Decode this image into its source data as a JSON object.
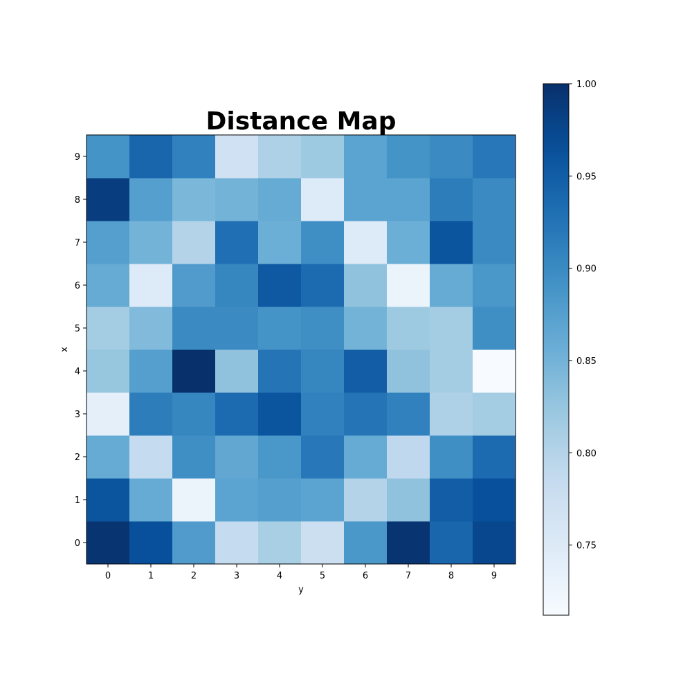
{
  "chart_data": {
    "type": "heatmap",
    "title": "Distance Map",
    "xlabel": "y",
    "ylabel": "x",
    "x_ticks": [
      "0",
      "1",
      "2",
      "3",
      "4",
      "5",
      "6",
      "7",
      "8",
      "9"
    ],
    "y_ticks": [
      "0",
      "1",
      "2",
      "3",
      "4",
      "5",
      "6",
      "7",
      "8",
      "9"
    ],
    "colormap": "Blues",
    "colorbar": {
      "min": 0.712,
      "max": 1.0,
      "ticks": [
        "0.75",
        "0.80",
        "0.85",
        "0.90",
        "0.95",
        "1.00"
      ],
      "tick_values": [
        0.75,
        0.8,
        0.85,
        0.9,
        0.95,
        1.0
      ]
    },
    "values_by_row_index": [
      [
        0.995,
        0.965,
        0.88,
        0.785,
        0.81,
        0.775,
        0.885,
        0.995,
        0.94,
        0.975
      ],
      [
        0.96,
        0.86,
        0.73,
        0.87,
        0.875,
        0.87,
        0.8,
        0.83,
        0.95,
        0.965
      ],
      [
        0.86,
        0.785,
        0.895,
        0.865,
        0.885,
        0.92,
        0.86,
        0.79,
        0.895,
        0.935
      ],
      [
        0.74,
        0.915,
        0.905,
        0.935,
        0.96,
        0.91,
        0.925,
        0.91,
        0.805,
        0.815
      ],
      [
        0.825,
        0.875,
        1.0,
        0.83,
        0.925,
        0.905,
        0.95,
        0.83,
        0.815,
        0.712
      ],
      [
        0.815,
        0.84,
        0.9,
        0.9,
        0.89,
        0.895,
        0.85,
        0.82,
        0.815,
        0.895
      ],
      [
        0.86,
        0.75,
        0.88,
        0.905,
        0.955,
        0.935,
        0.83,
        0.73,
        0.86,
        0.885
      ],
      [
        0.875,
        0.85,
        0.8,
        0.93,
        0.855,
        0.895,
        0.75,
        0.855,
        0.96,
        0.9
      ],
      [
        0.985,
        0.875,
        0.845,
        0.85,
        0.86,
        0.75,
        0.87,
        0.87,
        0.915,
        0.9
      ],
      [
        0.89,
        0.94,
        0.91,
        0.77,
        0.805,
        0.82,
        0.87,
        0.89,
        0.9,
        0.92
      ]
    ]
  }
}
